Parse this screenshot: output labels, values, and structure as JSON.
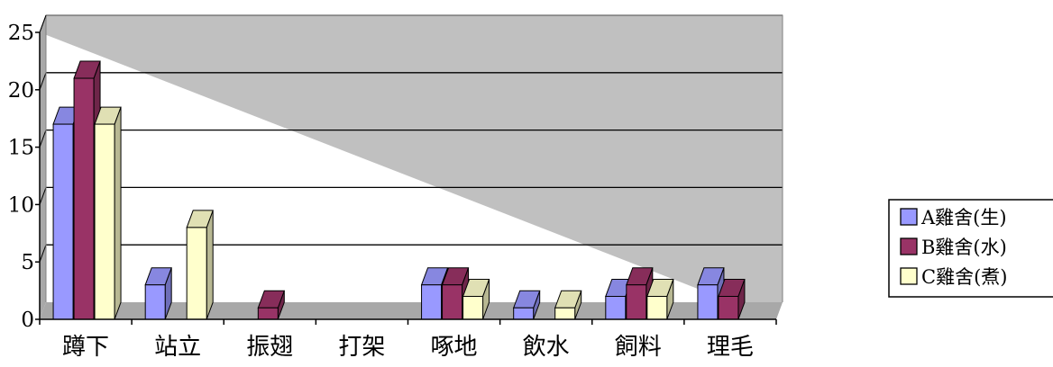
{
  "chart_data": {
    "type": "bar",
    "categories": [
      "蹲下",
      "站立",
      "振翅",
      "打架",
      "啄地",
      "飲水",
      "飼料",
      "理毛"
    ],
    "series": [
      {
        "name": "A雞舍(生)",
        "values": [
          17,
          3,
          0,
          0,
          3,
          1,
          2,
          3
        ],
        "color": "#9999ff"
      },
      {
        "name": "B雞舍(水)",
        "values": [
          21,
          0,
          1,
          0,
          3,
          0,
          3,
          2
        ],
        "color": "#993366"
      },
      {
        "name": "C雞舍(煮)",
        "values": [
          17,
          8,
          0,
          0,
          2,
          1,
          2,
          0
        ],
        "color": "#ffffcc"
      }
    ],
    "y_ticks": [
      "0",
      "5",
      "10",
      "15",
      "20",
      "25"
    ],
    "ylim": [
      0,
      25
    ],
    "grid": true,
    "plot_background": "#c0c0c0",
    "legend_position": "right",
    "three_d": true
  }
}
